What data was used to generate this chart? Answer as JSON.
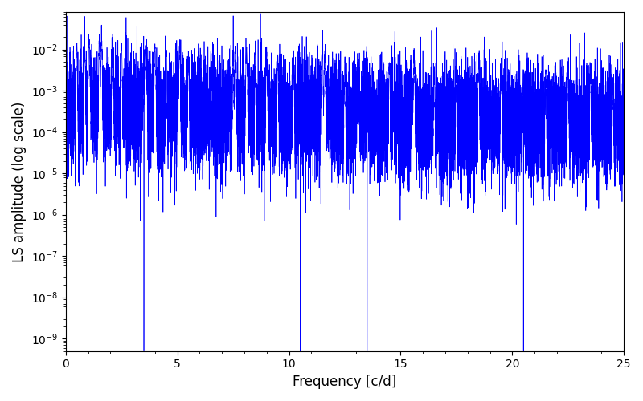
{
  "xlabel": "Frequency [c/d]",
  "ylabel": "LS amplitude (log scale)",
  "title": "",
  "line_color": "#0000ff",
  "line_width": 0.5,
  "xmin": 0,
  "xmax": 25,
  "ymin": 5e-10,
  "ymax": 0.08,
  "fig_width": 8.0,
  "fig_height": 5.0,
  "dpi": 100,
  "background_color": "#ffffff",
  "seed": 12345,
  "n_points": 12000
}
